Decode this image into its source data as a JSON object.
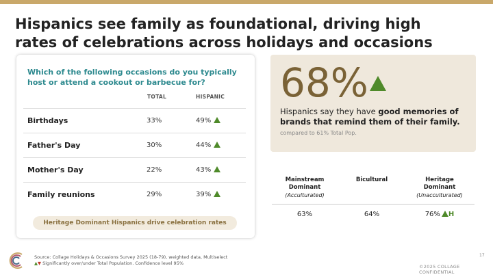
{
  "slide": {
    "title": "Hispanics see family as foundational, driving high rates of celebrations across holidays and occasions"
  },
  "table_card": {
    "question": "Which of the following occasions do you typically host or attend a cookout or barbecue for?",
    "col_total": "TOTAL",
    "col_hispanic": "HISPANIC",
    "rows": [
      {
        "label": "Birthdays",
        "total": "33%",
        "hispanic": "49%"
      },
      {
        "label": "Father's Day",
        "total": "30%",
        "hispanic": "44%"
      },
      {
        "label": "Mother's Day",
        "total": "22%",
        "hispanic": "43%"
      },
      {
        "label": "Family reunions",
        "total": "29%",
        "hispanic": "39%"
      }
    ],
    "callout": "Heritage Dominant Hispanics drive celebration rates"
  },
  "stat": {
    "value": "68%",
    "text_plain": "Hispanics say they have ",
    "text_bold": "good memories of brands that remind them of their family.",
    "compare": "compared to 61% Total Pop."
  },
  "segments": [
    {
      "name": "Mainstream Dominant",
      "sub": "(Acculturated)",
      "value": "63%",
      "flag": ""
    },
    {
      "name": "Bicultural",
      "sub": "",
      "value": "64%",
      "flag": ""
    },
    {
      "name": "Heritage Dominant",
      "sub": "(Unacculturated)",
      "value": "76%",
      "flag": "H"
    }
  ],
  "footer": {
    "source": "Source: Collage Holidays & Occasions Survey 2025 (18-79), weighted data, Multiselect",
    "legend": "Significantly over/under Total Population. Confidence level 95%",
    "page": "17",
    "confidential": "©2025 COLLAGE CONFIDENTIAL"
  },
  "colors": {
    "accent_gold": "#c9a86a",
    "question_teal": "#2e8a8f",
    "up_green": "#4f8a2a",
    "stat_bg": "#efe8dc"
  }
}
